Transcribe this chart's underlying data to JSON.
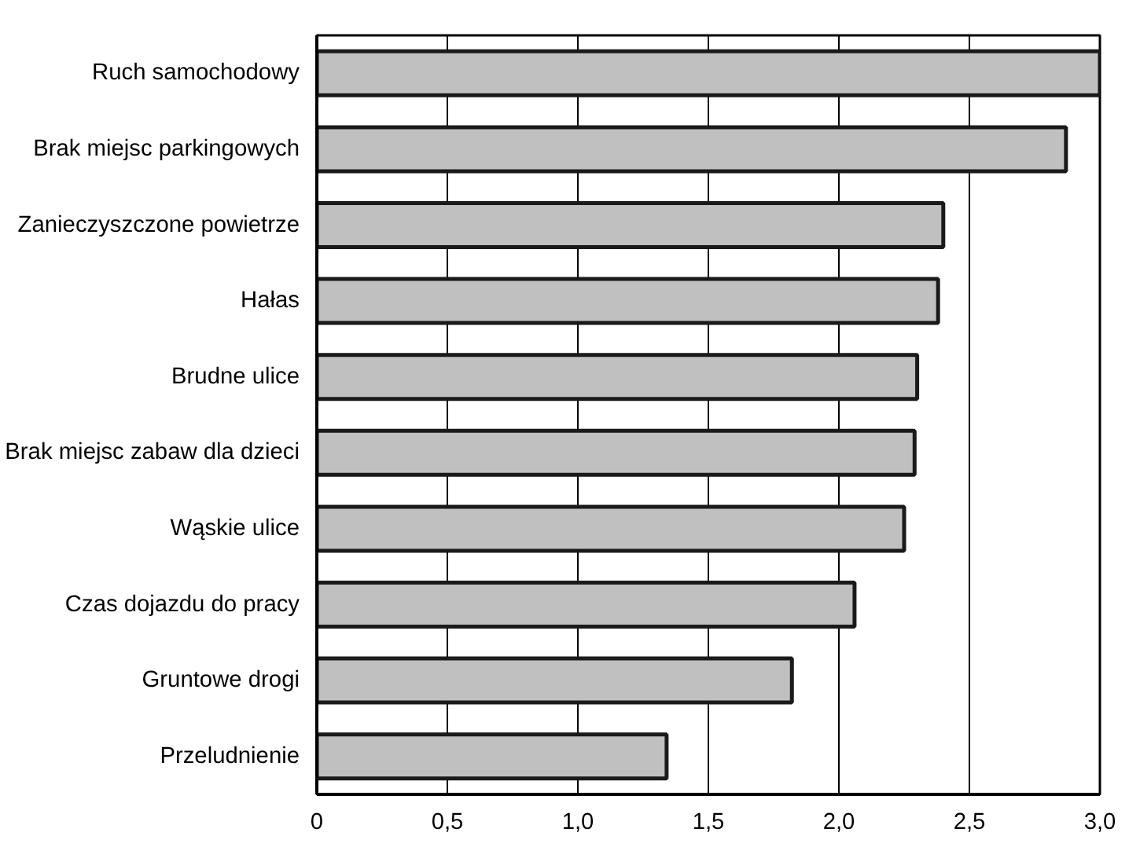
{
  "chart_data": {
    "type": "bar",
    "orientation": "horizontal",
    "categories": [
      "Ruch samochodowy",
      "Brak miejsc parkingowych",
      "Zanieczyszczone powietrze",
      "Hałas",
      "Brudne ulice",
      "Brak miejsc zabaw dla dzieci",
      "Wąskie ulice",
      "Czas dojazdu do pracy",
      "Gruntowe drogi",
      "Przeludnienie"
    ],
    "values": [
      3.0,
      2.87,
      2.4,
      2.38,
      2.3,
      2.29,
      2.25,
      2.06,
      1.82,
      1.34
    ],
    "color": "#c0c0c0",
    "xlim": [
      0,
      3
    ],
    "xticks": [
      0,
      {
        "value": 0.5,
        "label": "0,5"
      },
      {
        "value": 1,
        "label": "1,0"
      },
      {
        "value": 1.5,
        "label": "1,5"
      },
      {
        "value": 2,
        "label": "2,0"
      },
      {
        "value": 2.5,
        "label": "2,5"
      },
      {
        "value": 3,
        "label": "3,0"
      }
    ],
    "grid": "x"
  }
}
